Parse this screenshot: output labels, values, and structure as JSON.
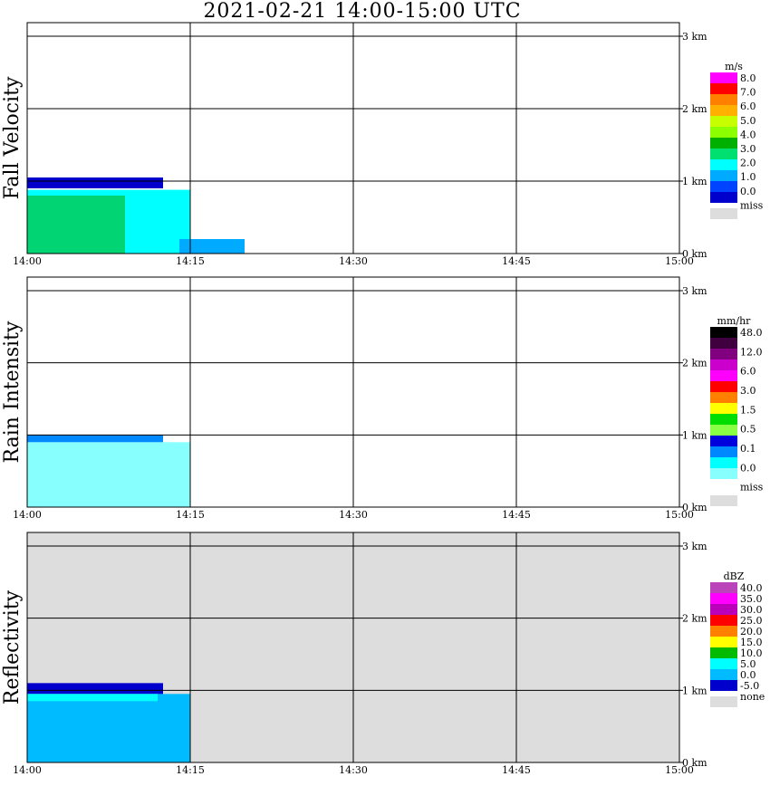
{
  "title": "2021-02-21   14:00-15:00 UTC",
  "chart_data": [
    {
      "type": "heatmap",
      "ylabel": "Fall Velocity",
      "xticks": [
        "14:00",
        "14:15",
        "14:30",
        "14:45",
        "15:00"
      ],
      "yticks": [
        "0 km",
        "1 km",
        "2 km",
        "3 km"
      ],
      "x_range_minutes": [
        0,
        60
      ],
      "y_range_km": [
        0,
        3.2
      ],
      "background": "#ffffff",
      "colorbar": {
        "unit": "m/s",
        "labels": [
          "8.0",
          "7.0",
          "6.0",
          "5.0",
          "4.0",
          "3.0",
          "2.0",
          "1.0",
          "0.0",
          "miss"
        ],
        "colors": [
          "#ff00ff",
          "#ff0000",
          "#ff8000",
          "#ffb000",
          "#c8ff00",
          "#8cff00",
          "#00b000",
          "#00e070",
          "#00ffff",
          "#00aaff",
          "#0044ff",
          "#0000cc",
          "#dddddd"
        ]
      },
      "regions": [
        {
          "name": "rain layer",
          "t": [
            0,
            15
          ],
          "z_km": [
            0,
            0.88
          ],
          "color": "#00ffff"
        },
        {
          "name": "melting layer",
          "t": [
            0,
            12.5
          ],
          "z_km": [
            0.9,
            1.05
          ],
          "color": "#0000cc"
        },
        {
          "name": "green patches",
          "t": [
            0,
            9
          ],
          "z_km": [
            0,
            0.8
          ],
          "color": "#00b000"
        },
        {
          "name": "light rain tail",
          "t": [
            14,
            20
          ],
          "z_km": [
            0,
            0.2
          ],
          "color": "#00aaff"
        }
      ]
    },
    {
      "type": "heatmap",
      "ylabel": "Rain Intensity",
      "xticks": [
        "14:00",
        "14:15",
        "14:30",
        "14:45",
        "15:00"
      ],
      "yticks": [
        "0 km",
        "1 km",
        "2 km",
        "3 km"
      ],
      "x_range_minutes": [
        0,
        60
      ],
      "y_range_km": [
        0,
        3.2
      ],
      "background": "#ffffff",
      "colorbar": {
        "unit": "mm/hr",
        "labels": [
          "48.0",
          "12.0",
          "6.0",
          "3.0",
          "1.5",
          "0.5",
          "0.1",
          "0.0",
          "miss"
        ],
        "colors": [
          "#000000",
          "#400040",
          "#800080",
          "#cc00cc",
          "#ff00ff",
          "#ff0000",
          "#ff8000",
          "#ffff00",
          "#00dd00",
          "#88ff44",
          "#0000dd",
          "#0088ff",
          "#00ffff",
          "#88ffff",
          "#ffffff",
          "#dddddd"
        ]
      },
      "regions": [
        {
          "name": "rain layer",
          "t": [
            0,
            15
          ],
          "z_km": [
            0,
            0.9
          ],
          "color": "#88ffff"
        },
        {
          "name": "melting layer",
          "t": [
            0,
            12.5
          ],
          "z_km": [
            0.9,
            1.0
          ],
          "color": "#0088ff"
        }
      ]
    },
    {
      "type": "heatmap",
      "ylabel": "Reflectivity",
      "xticks": [
        "14:00",
        "14:15",
        "14:30",
        "14:45",
        "15:00"
      ],
      "yticks": [
        "0 km",
        "1 km",
        "2 km",
        "3 km"
      ],
      "x_range_minutes": [
        0,
        60
      ],
      "y_range_km": [
        0,
        3.2
      ],
      "background": "#dddddd",
      "colorbar": {
        "unit": "dBZ",
        "labels": [
          "40.0",
          "35.0",
          "30.0",
          "25.0",
          "20.0",
          "15.0",
          "10.0",
          "5.0",
          "0.0",
          "-5.0",
          "none"
        ],
        "colors": [
          "#bb44bb",
          "#ff00ff",
          "#bb00bb",
          "#ff0000",
          "#ff8000",
          "#ffff00",
          "#00bb00",
          "#00ffff",
          "#00bbff",
          "#0000cc",
          "#dddddd"
        ]
      },
      "regions": [
        {
          "name": "rain layer",
          "t": [
            0,
            15
          ],
          "z_km": [
            0,
            0.95
          ],
          "color": "#00bbff"
        },
        {
          "name": "melting layer",
          "t": [
            0,
            12.5
          ],
          "z_km": [
            0.95,
            1.1
          ],
          "color": "#0000cc"
        },
        {
          "name": "bright band",
          "t": [
            0,
            12
          ],
          "z_km": [
            0.85,
            0.95
          ],
          "color": "#00ffff"
        }
      ]
    }
  ]
}
